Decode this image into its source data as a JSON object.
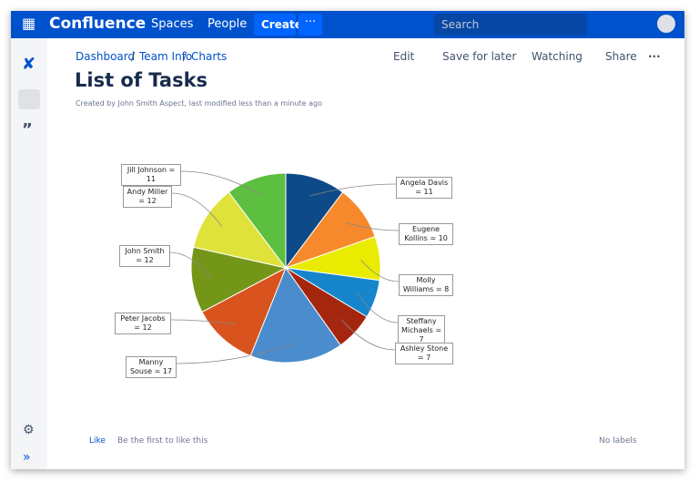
{
  "nav": {
    "brand": "Confluence",
    "spaces": "Spaces",
    "people": "People",
    "create": "Create",
    "search": "Search"
  },
  "breadcrumbs": [
    "Dashboard",
    "Team Info",
    "Charts"
  ],
  "actions": {
    "edit": "Edit",
    "save": "Save for later",
    "watching": "Watching",
    "share": "Share"
  },
  "page": {
    "title": "List of Tasks",
    "byline": "Created by John Smith Aspect, last modified less than a minute ago"
  },
  "footer": {
    "like": "Like",
    "like_note": "Be the first to like this",
    "labels": "No labels"
  },
  "chart_data": {
    "type": "pie",
    "values": [
      11,
      10,
      8,
      7,
      7,
      17,
      12,
      12,
      12,
      11
    ],
    "value_labels": [
      "Angela Davis = 11",
      "Eugene Kollins = 10",
      "Molly Williams = 8",
      "Steffany Michaels = 7",
      "Ashley Stone = 7",
      "Manny Souse = 17",
      "Peter Jacobs = 12",
      "John Smith = 12",
      "Andy Miller = 12",
      "Jill Johnson = 11"
    ],
    "colors": [
      "#0e4a88",
      "#f5892c",
      "#e9ec00",
      "#1685cc",
      "#a5260f",
      "#4a8ccc",
      "#d9531e",
      "#749618",
      "#dfe23b",
      "#5dbf3f"
    ]
  }
}
